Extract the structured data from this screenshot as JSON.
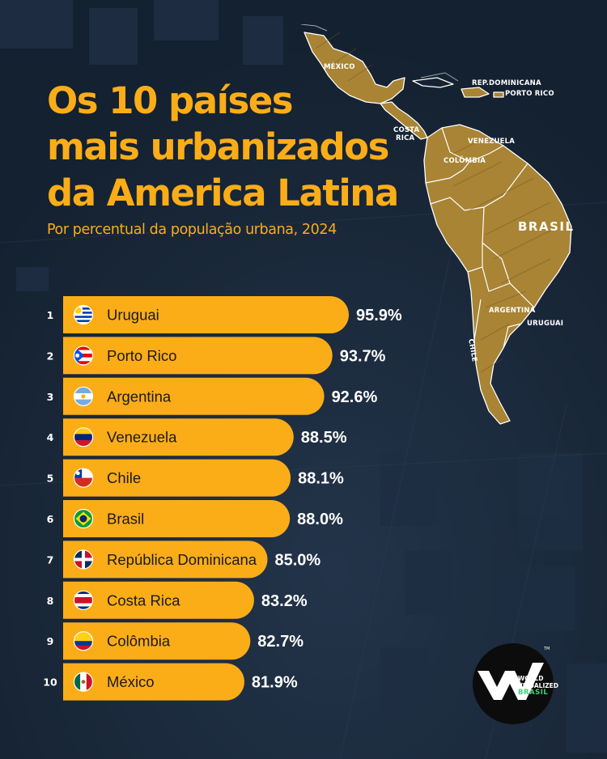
{
  "header": {
    "title_lines": [
      "Os 10 países",
      "mais urbanizados",
      "da America Latina"
    ],
    "subtitle": "Por percentual da população urbana, 2024"
  },
  "map": {
    "labels": [
      "MÉXICO",
      "REP.DOMINICANA",
      "PORTO RICO",
      "COSTA",
      "RICA",
      "VENEZUELA",
      "COLÔMBIA",
      "BRASIL",
      "ARGENTINA",
      "URUGUAI",
      "CHILE"
    ]
  },
  "chart_data": {
    "type": "bar",
    "categories": [
      "Uruguai",
      "Porto Rico",
      "Argentina",
      "Venezuela",
      "Chile",
      "Brasil",
      "República Dominicana",
      "Costa Rica",
      "Colômbia",
      "México"
    ],
    "ranks": [
      "1",
      "2",
      "3",
      "4",
      "5",
      "6",
      "7",
      "8",
      "9",
      "10"
    ],
    "values": [
      95.9,
      93.7,
      92.6,
      88.5,
      88.1,
      88.0,
      85.0,
      83.2,
      82.7,
      81.9
    ],
    "value_labels": [
      "95.9%",
      "93.7%",
      "92.6%",
      "88.5%",
      "88.1%",
      "88.0%",
      "85.0%",
      "83.2%",
      "82.7%",
      "81.9%"
    ],
    "flags": [
      "uruguay-flag",
      "puerto-rico-flag",
      "argentina-flag",
      "venezuela-flag",
      "chile-flag",
      "brazil-flag",
      "dominican-republic-flag",
      "costa-rica-flag",
      "colombia-flag",
      "mexico-flag"
    ],
    "bar_color": "#fbad18",
    "orientation": "horizontal"
  },
  "logo": {
    "line1": "WORLD",
    "line2": "VISUALIZED",
    "line3": "BRASIL",
    "tm": "TM"
  },
  "colors": {
    "background": "#172536",
    "accent": "#fbad18",
    "map_land": "#a88434",
    "brand_green": "#3fd27a"
  }
}
